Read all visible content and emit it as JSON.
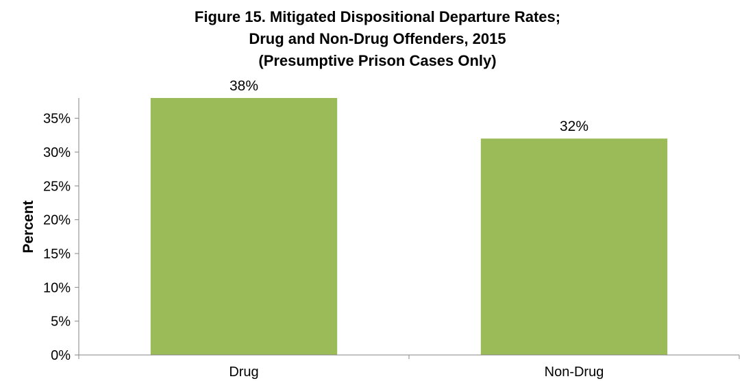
{
  "chart_data": {
    "type": "bar",
    "title_lines": [
      "Figure 15. Mitigated Dispositional Departure Rates;",
      "Drug and Non-Drug Offenders, 2015",
      "(Presumptive Prison Cases Only)"
    ],
    "categories": [
      "Drug",
      "Non-Drug"
    ],
    "values": [
      38,
      32
    ],
    "data_labels": [
      "38%",
      "32%"
    ],
    "ylabel": "Percent",
    "xlabel": "",
    "ylim": [
      0,
      38
    ],
    "yticks": [
      0,
      5,
      10,
      15,
      20,
      25,
      30,
      35
    ],
    "ytick_labels": [
      "0%",
      "5%",
      "10%",
      "15%",
      "20%",
      "25%",
      "30%",
      "35%"
    ],
    "bar_color": "#9bbb59",
    "grid": false,
    "legend": "none"
  }
}
